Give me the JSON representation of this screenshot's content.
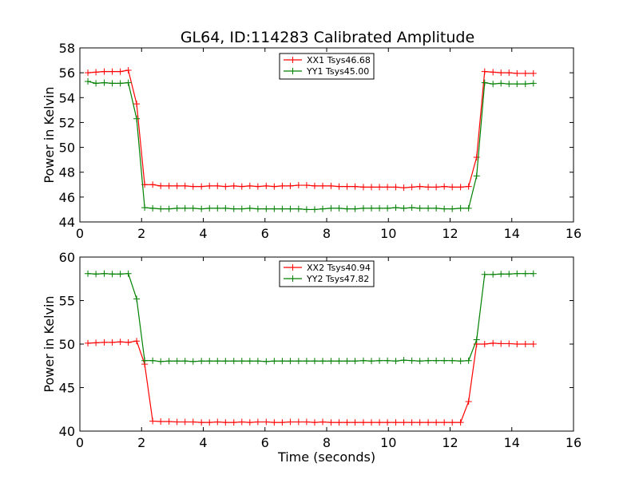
{
  "title": "GL64, ID:114283 Calibrated Amplitude",
  "chart_data": [
    {
      "type": "line",
      "xlabel": "",
      "ylabel": "Power in Kelvin",
      "xlim": [
        0,
        16
      ],
      "ylim": [
        44,
        58
      ],
      "xticks": [
        0,
        2,
        4,
        6,
        8,
        10,
        12,
        14,
        16
      ],
      "yticks": [
        44,
        46,
        48,
        50,
        52,
        54,
        56,
        58
      ],
      "grid": false,
      "legend": "top-center",
      "series": [
        {
          "name": "XX1 Tsys46.68",
          "color": "#ff0000",
          "x": [
            0.26,
            0.52,
            0.79,
            1.05,
            1.31,
            1.57,
            1.84,
            2.1,
            2.36,
            2.62,
            2.89,
            3.15,
            3.41,
            3.67,
            3.94,
            4.2,
            4.46,
            4.72,
            4.99,
            5.25,
            5.51,
            5.77,
            6.04,
            6.3,
            6.56,
            6.82,
            7.09,
            7.35,
            7.61,
            7.87,
            8.14,
            8.4,
            8.66,
            8.92,
            9.19,
            9.45,
            9.71,
            9.97,
            10.24,
            10.5,
            10.76,
            11.02,
            11.29,
            11.55,
            11.81,
            12.07,
            12.34,
            12.6,
            12.86,
            13.12,
            13.39,
            13.65,
            13.91,
            14.17,
            14.44,
            14.7
          ],
          "y": [
            56.0,
            56.05,
            56.1,
            56.1,
            56.1,
            56.2,
            53.5,
            47.0,
            47.0,
            46.9,
            46.9,
            46.9,
            46.9,
            46.85,
            46.85,
            46.9,
            46.9,
            46.85,
            46.9,
            46.85,
            46.9,
            46.85,
            46.9,
            46.85,
            46.9,
            46.9,
            46.95,
            46.95,
            46.9,
            46.9,
            46.9,
            46.85,
            46.85,
            46.85,
            46.8,
            46.8,
            46.8,
            46.8,
            46.8,
            46.75,
            46.8,
            46.85,
            46.8,
            46.8,
            46.85,
            46.8,
            46.8,
            46.85,
            49.2,
            56.1,
            56.05,
            56.0,
            56.0,
            55.95,
            55.95,
            55.95
          ]
        },
        {
          "name": "YY1 Tsys45.00",
          "color": "#008000",
          "x": [
            0.26,
            0.52,
            0.79,
            1.05,
            1.31,
            1.57,
            1.84,
            2.1,
            2.36,
            2.62,
            2.89,
            3.15,
            3.41,
            3.67,
            3.94,
            4.2,
            4.46,
            4.72,
            4.99,
            5.25,
            5.51,
            5.77,
            6.04,
            6.3,
            6.56,
            6.82,
            7.09,
            7.35,
            7.61,
            7.87,
            8.14,
            8.4,
            8.66,
            8.92,
            9.19,
            9.45,
            9.71,
            9.97,
            10.24,
            10.5,
            10.76,
            11.02,
            11.29,
            11.55,
            11.81,
            12.07,
            12.34,
            12.6,
            12.86,
            13.12,
            13.39,
            13.65,
            13.91,
            14.17,
            14.44,
            14.7
          ],
          "y": [
            55.3,
            55.15,
            55.2,
            55.15,
            55.15,
            55.2,
            52.3,
            45.15,
            45.1,
            45.05,
            45.05,
            45.1,
            45.1,
            45.1,
            45.05,
            45.1,
            45.1,
            45.1,
            45.05,
            45.05,
            45.1,
            45.05,
            45.05,
            45.05,
            45.05,
            45.05,
            45.05,
            45.0,
            45.0,
            45.05,
            45.1,
            45.1,
            45.05,
            45.05,
            45.1,
            45.1,
            45.1,
            45.1,
            45.15,
            45.1,
            45.15,
            45.1,
            45.1,
            45.1,
            45.05,
            45.05,
            45.1,
            45.1,
            47.7,
            55.2,
            55.1,
            55.15,
            55.1,
            55.1,
            55.1,
            55.15
          ]
        }
      ]
    },
    {
      "type": "line",
      "xlabel": "Time (seconds)",
      "ylabel": "Power in Kelvin",
      "xlim": [
        0,
        16
      ],
      "ylim": [
        40,
        60
      ],
      "xticks": [
        0,
        2,
        4,
        6,
        8,
        10,
        12,
        14,
        16
      ],
      "yticks": [
        40,
        45,
        50,
        55,
        60
      ],
      "grid": false,
      "legend": "top-center",
      "series": [
        {
          "name": "XX2 Tsys40.94",
          "color": "#ff0000",
          "x": [
            0.26,
            0.52,
            0.79,
            1.05,
            1.31,
            1.57,
            1.84,
            2.1,
            2.36,
            2.62,
            2.89,
            3.15,
            3.41,
            3.67,
            3.94,
            4.2,
            4.46,
            4.72,
            4.99,
            5.25,
            5.51,
            5.77,
            6.04,
            6.3,
            6.56,
            6.82,
            7.09,
            7.35,
            7.61,
            7.87,
            8.14,
            8.4,
            8.66,
            8.92,
            9.19,
            9.45,
            9.71,
            9.97,
            10.24,
            10.5,
            10.76,
            11.02,
            11.29,
            11.55,
            11.81,
            12.07,
            12.34,
            12.6,
            12.86,
            13.12,
            13.39,
            13.65,
            13.91,
            14.17,
            14.44,
            14.7
          ],
          "y": [
            50.1,
            50.15,
            50.2,
            50.2,
            50.25,
            50.2,
            50.35,
            47.7,
            41.15,
            41.1,
            41.1,
            41.05,
            41.05,
            41.05,
            41.0,
            41.0,
            41.05,
            41.0,
            41.0,
            41.05,
            41.0,
            41.05,
            41.05,
            41.0,
            41.0,
            41.05,
            41.05,
            41.05,
            41.0,
            41.05,
            41.0,
            41.0,
            41.0,
            41.0,
            41.0,
            41.0,
            41.0,
            41.0,
            41.0,
            41.0,
            41.0,
            41.0,
            41.0,
            41.0,
            41.0,
            41.0,
            41.0,
            43.4,
            50.0,
            50.0,
            50.1,
            50.05,
            50.05,
            50.0,
            50.0,
            50.0
          ]
        },
        {
          "name": "YY2 Tsys47.82",
          "color": "#008000",
          "x": [
            0.26,
            0.52,
            0.79,
            1.05,
            1.31,
            1.57,
            1.84,
            2.1,
            2.36,
            2.62,
            2.89,
            3.15,
            3.41,
            3.67,
            3.94,
            4.2,
            4.46,
            4.72,
            4.99,
            5.25,
            5.51,
            5.77,
            6.04,
            6.3,
            6.56,
            6.82,
            7.09,
            7.35,
            7.61,
            7.87,
            8.14,
            8.4,
            8.66,
            8.92,
            9.19,
            9.45,
            9.71,
            9.97,
            10.24,
            10.5,
            10.76,
            11.02,
            11.29,
            11.55,
            11.81,
            12.07,
            12.34,
            12.6,
            12.86,
            13.12,
            13.39,
            13.65,
            13.91,
            14.17,
            14.44,
            14.7
          ],
          "y": [
            58.1,
            58.05,
            58.1,
            58.05,
            58.05,
            58.1,
            55.2,
            48.1,
            48.1,
            48.0,
            48.05,
            48.05,
            48.05,
            48.0,
            48.05,
            48.05,
            48.05,
            48.05,
            48.05,
            48.05,
            48.05,
            48.05,
            48.0,
            48.05,
            48.05,
            48.05,
            48.05,
            48.05,
            48.05,
            48.05,
            48.05,
            48.05,
            48.05,
            48.05,
            48.1,
            48.05,
            48.1,
            48.1,
            48.05,
            48.15,
            48.1,
            48.05,
            48.1,
            48.1,
            48.1,
            48.1,
            48.05,
            48.1,
            50.5,
            58.0,
            58.0,
            58.05,
            58.05,
            58.1,
            58.1,
            58.1
          ]
        }
      ]
    }
  ]
}
